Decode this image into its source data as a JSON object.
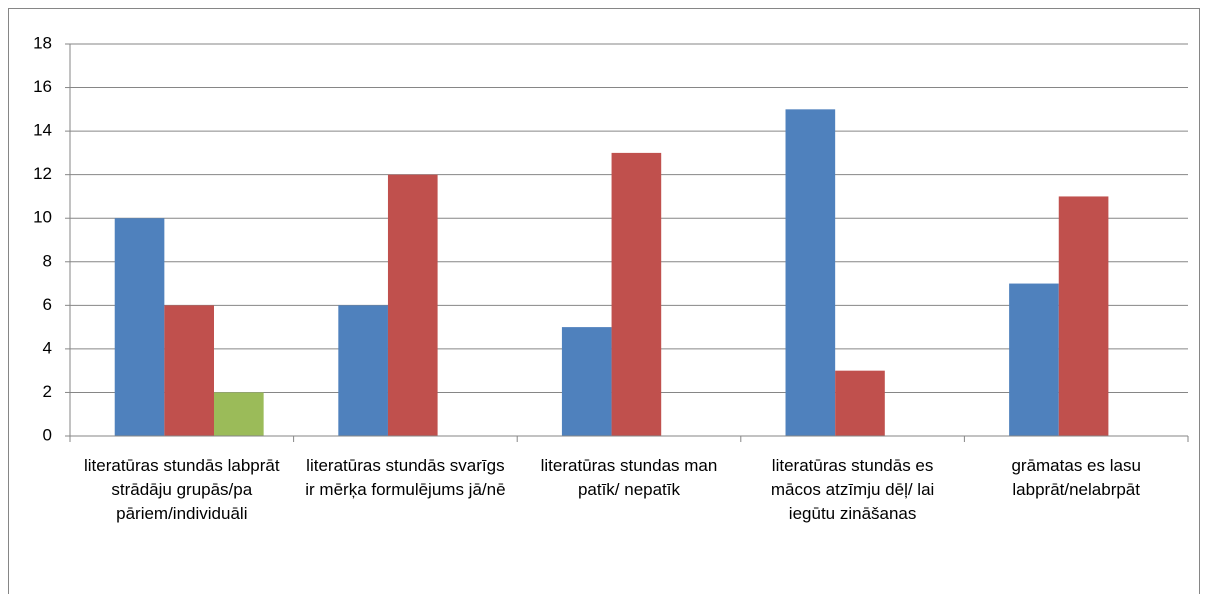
{
  "chart_data": {
    "type": "bar",
    "categories": [
      "literatūras stundās labprāt strādāju grupās/pa pāriem/individuāli",
      "literatūras stundās svarīgs ir mērķa formulējums jā/nē",
      "literatūras stundas man patīk/ nepatīk",
      "literatūras stundās es mācos atzīmju dēļ/ lai iegūtu zināšanas",
      "grāmatas es lasu labprāt/nelabrpāt"
    ],
    "series": [
      {
        "color": "#4f81bd",
        "values": [
          10,
          6,
          5,
          15,
          7
        ]
      },
      {
        "color": "#c0504d",
        "values": [
          6,
          12,
          13,
          3,
          11
        ]
      },
      {
        "color": "#9bbb59",
        "values": [
          2,
          null,
          null,
          null,
          null
        ]
      }
    ],
    "ylim": [
      0,
      18
    ],
    "yticks": [
      0,
      2,
      4,
      6,
      8,
      10,
      12,
      14,
      16,
      18
    ],
    "grid": true
  }
}
